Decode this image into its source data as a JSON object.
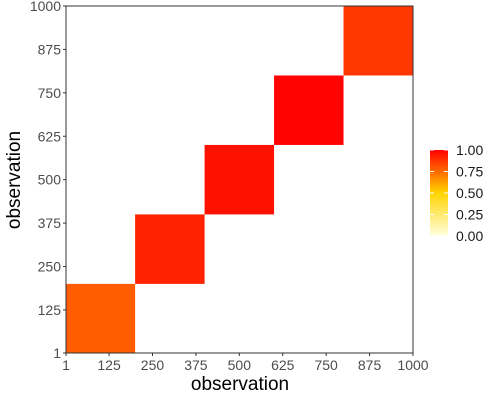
{
  "chart_data": {
    "type": "heatmap",
    "title": "",
    "xlabel": "observation",
    "ylabel": "observation",
    "xlim": [
      1,
      1000
    ],
    "ylim": [
      1,
      1000
    ],
    "x_ticks": [
      "1",
      "125",
      "250",
      "375",
      "500",
      "625",
      "750",
      "875",
      "1000"
    ],
    "y_ticks": [
      "1",
      "125",
      "250",
      "375",
      "500",
      "625",
      "750",
      "875",
      "1000"
    ],
    "blocks": [
      {
        "range": [
          1,
          200
        ],
        "mean_value": 0.78
      },
      {
        "range": [
          200,
          400
        ],
        "mean_value": 0.92
      },
      {
        "range": [
          400,
          600
        ],
        "mean_value": 0.96
      },
      {
        "range": [
          600,
          800
        ],
        "mean_value": 0.99
      },
      {
        "range": [
          800,
          1000
        ],
        "mean_value": 0.87
      }
    ],
    "background_value": 0.0,
    "color_scale": {
      "min": 0,
      "max": 1,
      "low_color": "#ffffe0",
      "mid_color": "#ffd400",
      "high_color": "#ff0000"
    },
    "legend": {
      "labels": [
        "1.00",
        "0.75",
        "0.50",
        "0.25",
        "0.00"
      ],
      "placement": "right"
    },
    "panel_border": true,
    "grid": false
  }
}
